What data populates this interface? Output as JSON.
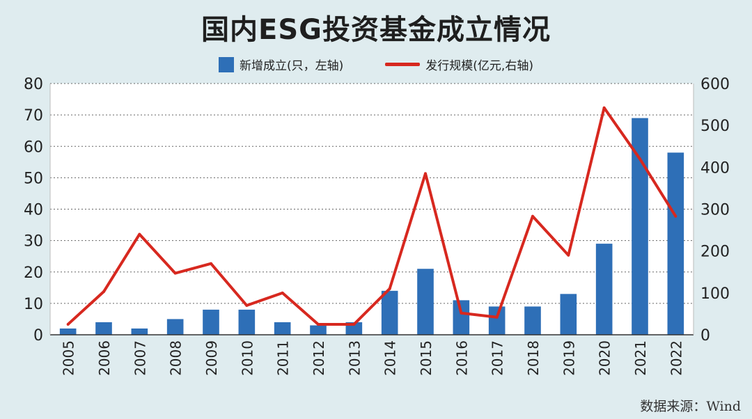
{
  "chart_data": {
    "type": "bar",
    "title": "国内ESG投资基金成立情况",
    "categories": [
      "2005",
      "2006",
      "2007",
      "2008",
      "2009",
      "2010",
      "2011",
      "2012",
      "2013",
      "2014",
      "2015",
      "2016",
      "2017",
      "2018",
      "2019",
      "2020",
      "2021",
      "2022"
    ],
    "series": [
      {
        "name": "新增成立(只，左轴)",
        "type": "bar",
        "axis": "left",
        "color": "#2e6fb7",
        "values": [
          2,
          4,
          2,
          5,
          8,
          8,
          4,
          3,
          4,
          14,
          21,
          11,
          9,
          9,
          13,
          29,
          69,
          58
        ]
      },
      {
        "name": "发行规模(亿元,右轴)",
        "type": "line",
        "axis": "right",
        "color": "#d7281f",
        "values": [
          25,
          103,
          240,
          147,
          170,
          70,
          100,
          25,
          25,
          110,
          385,
          52,
          42,
          283,
          190,
          542,
          420,
          283
        ]
      }
    ],
    "y_left": {
      "min": 0,
      "max": 80,
      "ticks": [
        0,
        10,
        20,
        30,
        40,
        50,
        60,
        70,
        80
      ]
    },
    "y_right": {
      "min": 0,
      "max": 600,
      "ticks": [
        0,
        100,
        200,
        300,
        400,
        500,
        600
      ]
    },
    "grid": "horizontal dotted",
    "legend_position": "top-center"
  },
  "source_text": "数据来源：Wind"
}
